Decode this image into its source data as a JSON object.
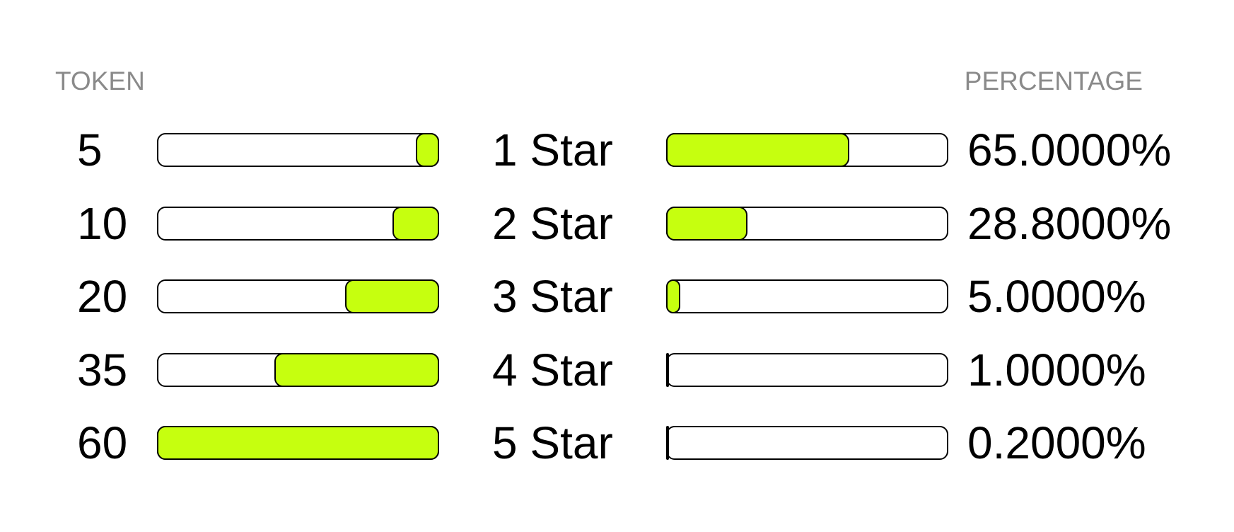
{
  "headers": {
    "left": "TOKEN",
    "right": "PERCENTAGE"
  },
  "colors": {
    "fill": "#c6ff0f",
    "track": "#ffffff",
    "border": "#000000",
    "header": "#8a8a8a"
  },
  "chart_data": {
    "type": "bar",
    "token_scale_max": 60,
    "percentage_scale_max": 100,
    "rows": [
      {
        "token": 5,
        "token_label": "5",
        "star": "1 Star",
        "percentage": 65.0,
        "percentage_label": "65.0000%"
      },
      {
        "token": 10,
        "token_label": "10",
        "star": "2 Star",
        "percentage": 28.8,
        "percentage_label": "28.8000%"
      },
      {
        "token": 20,
        "token_label": "20",
        "star": "3 Star",
        "percentage": 5.0,
        "percentage_label": "5.0000%"
      },
      {
        "token": 35,
        "token_label": "35",
        "star": "4 Star",
        "percentage": 1.0,
        "percentage_label": "1.0000%"
      },
      {
        "token": 60,
        "token_label": "60",
        "star": "5 Star",
        "percentage": 0.2,
        "percentage_label": "0.2000%"
      }
    ]
  }
}
